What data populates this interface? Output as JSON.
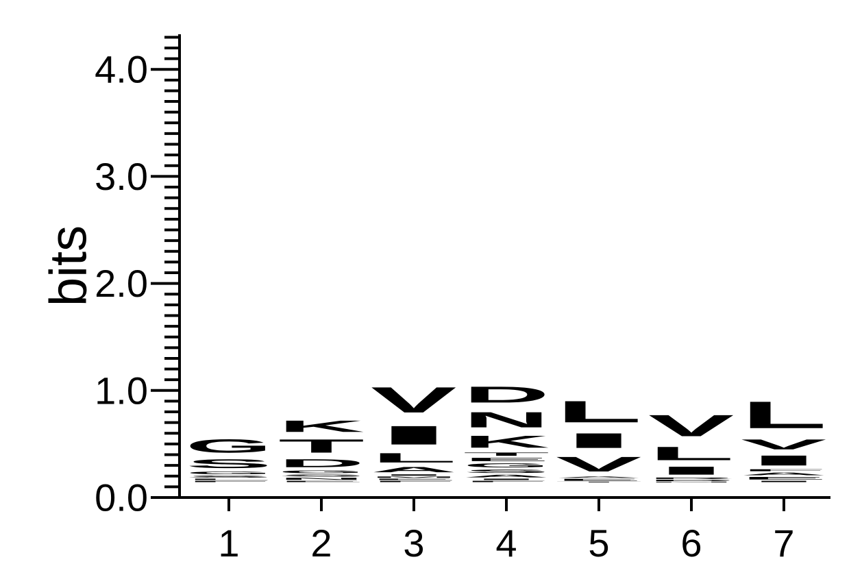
{
  "chart_data": {
    "type": "sequence-logo",
    "ylabel": "bits",
    "ylim": [
      0,
      4.3
    ],
    "yticks": [
      {
        "value": 0,
        "label": "0.0"
      },
      {
        "value": 1,
        "label": "1.0"
      },
      {
        "value": 2,
        "label": "2.0"
      },
      {
        "value": 3,
        "label": "3.0"
      },
      {
        "value": 4,
        "label": "4.0"
      }
    ],
    "minor_tick_step": 0.1,
    "positions": [
      {
        "label": "1",
        "stack": [
          {
            "letter": "F",
            "bits": 0.02
          },
          {
            "letter": "L",
            "bits": 0.02
          },
          {
            "letter": "S",
            "bits": 0.03
          },
          {
            "letter": "G",
            "bits": 0.04
          },
          {
            "letter": "S",
            "bits": 0.13
          },
          {
            "letter": "G",
            "bits": 0.2
          }
        ]
      },
      {
        "label": "2",
        "stack": [
          {
            "letter": "E",
            "bits": 0.02
          },
          {
            "letter": "N",
            "bits": 0.03
          },
          {
            "letter": "S",
            "bits": 0.03
          },
          {
            "letter": "G",
            "bits": 0.04
          },
          {
            "letter": "D",
            "bits": 0.12
          },
          {
            "letter": "T",
            "bits": 0.2
          },
          {
            "letter": "K",
            "bits": 0.17
          }
        ]
      },
      {
        "label": "3",
        "stack": [
          {
            "letter": "F",
            "bits": 0.02
          },
          {
            "letter": "E",
            "bits": 0.02
          },
          {
            "letter": "M",
            "bits": 0.02
          },
          {
            "letter": "I",
            "bits": 0.02
          },
          {
            "letter": "A",
            "bits": 0.08
          },
          {
            "letter": "L",
            "bits": 0.14
          },
          {
            "letter": "I",
            "bits": 0.28
          },
          {
            "letter": "V",
            "bits": 0.38
          }
        ]
      },
      {
        "label": "4",
        "stack": [
          {
            "letter": "F",
            "bits": 0.02
          },
          {
            "letter": "I",
            "bits": 0.02
          },
          {
            "letter": "A",
            "bits": 0.04
          },
          {
            "letter": "S",
            "bits": 0.05
          },
          {
            "letter": "G",
            "bits": 0.06
          },
          {
            "letter": "E",
            "bits": 0.05
          },
          {
            "letter": "T",
            "bits": 0.05
          },
          {
            "letter": "K",
            "bits": 0.18
          },
          {
            "letter": "N",
            "bits": 0.23
          },
          {
            "letter": "D",
            "bits": 0.24
          }
        ]
      },
      {
        "label": "5",
        "stack": [
          {
            "letter": "T",
            "bits": 0.01
          },
          {
            "letter": "E",
            "bits": 0.03
          },
          {
            "letter": "A",
            "bits": 0.02
          },
          {
            "letter": "V",
            "bits": 0.22
          },
          {
            "letter": "I",
            "bits": 0.22
          },
          {
            "letter": "L",
            "bits": 0.32
          }
        ]
      },
      {
        "label": "6",
        "stack": [
          {
            "letter": "N",
            "bits": 0.01
          },
          {
            "letter": "D",
            "bits": 0.02
          },
          {
            "letter": "R",
            "bits": 0.02
          },
          {
            "letter": "I",
            "bits": 0.12
          },
          {
            "letter": "L",
            "bits": 0.2
          },
          {
            "letter": "V",
            "bits": 0.32
          }
        ]
      },
      {
        "label": "7",
        "stack": [
          {
            "letter": "I",
            "bits": 0.02
          },
          {
            "letter": "E",
            "bits": 0.04
          },
          {
            "letter": "A",
            "bits": 0.04
          },
          {
            "letter": "F",
            "bits": 0.03
          },
          {
            "letter": "I",
            "bits": 0.15
          },
          {
            "letter": "V",
            "bits": 0.15
          },
          {
            "letter": "L",
            "bits": 0.4
          }
        ]
      }
    ]
  }
}
